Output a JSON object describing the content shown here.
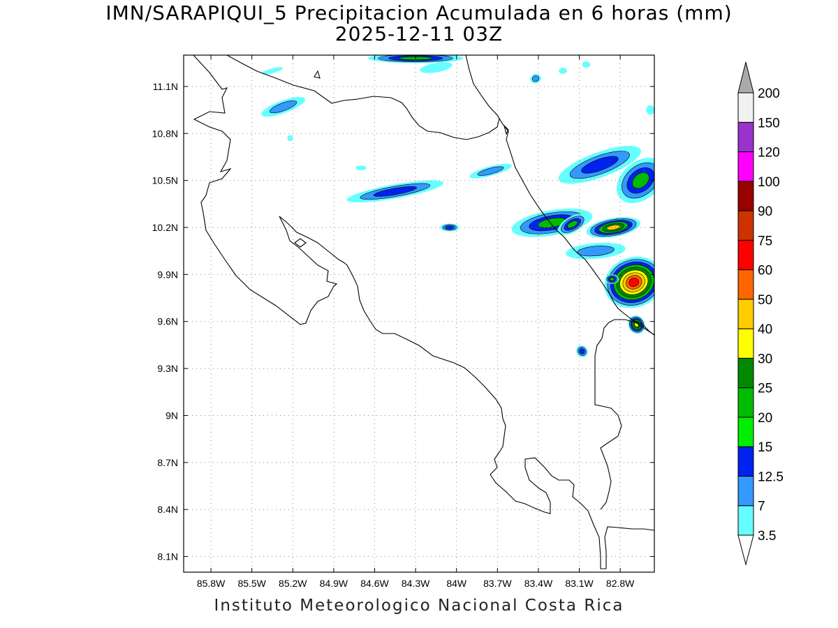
{
  "title": {
    "line1": "IMN/SARAPIQUI_5 Precipitacion Acumulada en 6 horas (mm)",
    "line2": "2025-12-11 03Z"
  },
  "footer": "Instituto Meteorologico Nacional Costa Rica",
  "map": {
    "lon_range": [
      -86.0,
      -82.55
    ],
    "lat_range": [
      8.0,
      11.3
    ],
    "grid": true,
    "x_ticks": [
      "85.8W",
      "85.5W",
      "85.2W",
      "84.9W",
      "84.6W",
      "84.3W",
      "84W",
      "83.7W",
      "83.4W",
      "83.1W",
      "82.8W"
    ],
    "x_tick_values": [
      -85.8,
      -85.5,
      -85.2,
      -84.9,
      -84.6,
      -84.3,
      -84.0,
      -83.7,
      -83.4,
      -83.1,
      -82.8
    ],
    "y_ticks": [
      "11.1N",
      "10.8N",
      "10.5N",
      "10.2N",
      "9.9N",
      "9.6N",
      "9.3N",
      "9N",
      "8.7N",
      "8.4N",
      "8.1N"
    ],
    "y_tick_values": [
      11.1,
      10.8,
      10.5,
      10.2,
      9.9,
      9.6,
      9.3,
      9.0,
      8.7,
      8.4,
      8.1
    ]
  },
  "colorbar": {
    "levels": [
      "3.5",
      "7",
      "12.5",
      "15",
      "20",
      "25",
      "30",
      "40",
      "50",
      "60",
      "75",
      "90",
      "100",
      "120",
      "150",
      "200"
    ],
    "colors": [
      "#66ffff",
      "#3399ff",
      "#0022ee",
      "#00ee00",
      "#00bb00",
      "#008800",
      "#ffff00",
      "#ffcc00",
      "#ff6600",
      "#ff0000",
      "#cc3300",
      "#990000",
      "#ff00ff",
      "#9933cc",
      "#f2f2f2"
    ],
    "under_color": "#ffffff",
    "over_color": "#aaaaaa"
  },
  "precip_cells": [
    {
      "lon": -84.3,
      "lat": 11.28,
      "rx": 0.35,
      "ry": 0.03,
      "rot": 0,
      "levels": [
        3.5,
        7,
        12.5,
        20
      ]
    },
    {
      "lon": -84.15,
      "lat": 11.22,
      "rx": 0.12,
      "ry": 0.03,
      "rot": -10,
      "levels": [
        3.5
      ]
    },
    {
      "lon": -85.27,
      "lat": 10.97,
      "rx": 0.17,
      "ry": 0.04,
      "rot": -20,
      "levels": [
        3.5,
        7
      ]
    },
    {
      "lon": -85.35,
      "lat": 11.2,
      "rx": 0.08,
      "ry": 0.015,
      "rot": -15,
      "levels": [
        3.5
      ]
    },
    {
      "lon": -85.22,
      "lat": 10.77,
      "rx": 0.02,
      "ry": 0.02,
      "rot": 0,
      "levels": [
        3.5
      ]
    },
    {
      "lon": -84.45,
      "lat": 10.43,
      "rx": 0.36,
      "ry": 0.045,
      "rot": -10,
      "levels": [
        3.5,
        7,
        12.5
      ]
    },
    {
      "lon": -84.7,
      "lat": 10.58,
      "rx": 0.04,
      "ry": 0.015,
      "rot": 0,
      "levels": [
        3.5
      ]
    },
    {
      "lon": -84.05,
      "lat": 10.2,
      "rx": 0.07,
      "ry": 0.025,
      "rot": 0,
      "levels": [
        3.5,
        7,
        12.5
      ]
    },
    {
      "lon": -83.75,
      "lat": 10.56,
      "rx": 0.16,
      "ry": 0.03,
      "rot": -15,
      "levels": [
        3.5,
        7
      ]
    },
    {
      "lon": -83.42,
      "lat": 11.15,
      "rx": 0.04,
      "ry": 0.03,
      "rot": -20,
      "levels": [
        3.5,
        7
      ]
    },
    {
      "lon": -83.22,
      "lat": 11.2,
      "rx": 0.03,
      "ry": 0.02,
      "rot": 0,
      "levels": [
        3.5
      ]
    },
    {
      "lon": -83.05,
      "lat": 11.24,
      "rx": 0.03,
      "ry": 0.02,
      "rot": 0,
      "levels": [
        3.5
      ]
    },
    {
      "lon": -82.95,
      "lat": 10.6,
      "rx": 0.32,
      "ry": 0.08,
      "rot": -20,
      "levels": [
        3.5,
        7,
        12.5
      ]
    },
    {
      "lon": -82.65,
      "lat": 10.5,
      "rx": 0.2,
      "ry": 0.12,
      "rot": -40,
      "levels": [
        3.5,
        7,
        12.5,
        20
      ]
    },
    {
      "lon": -83.3,
      "lat": 10.23,
      "rx": 0.3,
      "ry": 0.08,
      "rot": -10,
      "levels": [
        3.5,
        7,
        12.5,
        20
      ]
    },
    {
      "lon": -83.15,
      "lat": 10.22,
      "rx": 0.12,
      "ry": 0.05,
      "rot": -30,
      "levels": [
        3.5,
        7,
        12.5,
        20
      ]
    },
    {
      "lon": -82.85,
      "lat": 10.2,
      "rx": 0.2,
      "ry": 0.06,
      "rot": -10,
      "levels": [
        3.5,
        7,
        12.5,
        20,
        25,
        40
      ]
    },
    {
      "lon": -82.98,
      "lat": 10.05,
      "rx": 0.22,
      "ry": 0.05,
      "rot": -5,
      "levels": [
        3.5,
        7
      ]
    },
    {
      "lon": -82.7,
      "lat": 9.85,
      "rx": 0.22,
      "ry": 0.16,
      "rot": -20,
      "levels": [
        3.5,
        7,
        12.5,
        20,
        25,
        30,
        40,
        50,
        60
      ]
    },
    {
      "lon": -82.86,
      "lat": 9.87,
      "rx": 0.05,
      "ry": 0.03,
      "rot": 0,
      "levels": [
        3.5,
        7,
        12.5,
        20
      ]
    },
    {
      "lon": -82.68,
      "lat": 9.58,
      "rx": 0.06,
      "ry": 0.06,
      "rot": -30,
      "levels": [
        3.5,
        7,
        12.5,
        20,
        25,
        30
      ]
    },
    {
      "lon": -83.08,
      "lat": 9.41,
      "rx": 0.04,
      "ry": 0.04,
      "rot": -40,
      "levels": [
        3.5,
        7,
        12.5
      ]
    },
    {
      "lon": -82.58,
      "lat": 10.95,
      "rx": 0.03,
      "ry": 0.03,
      "rot": 0,
      "levels": [
        3.5
      ]
    }
  ]
}
